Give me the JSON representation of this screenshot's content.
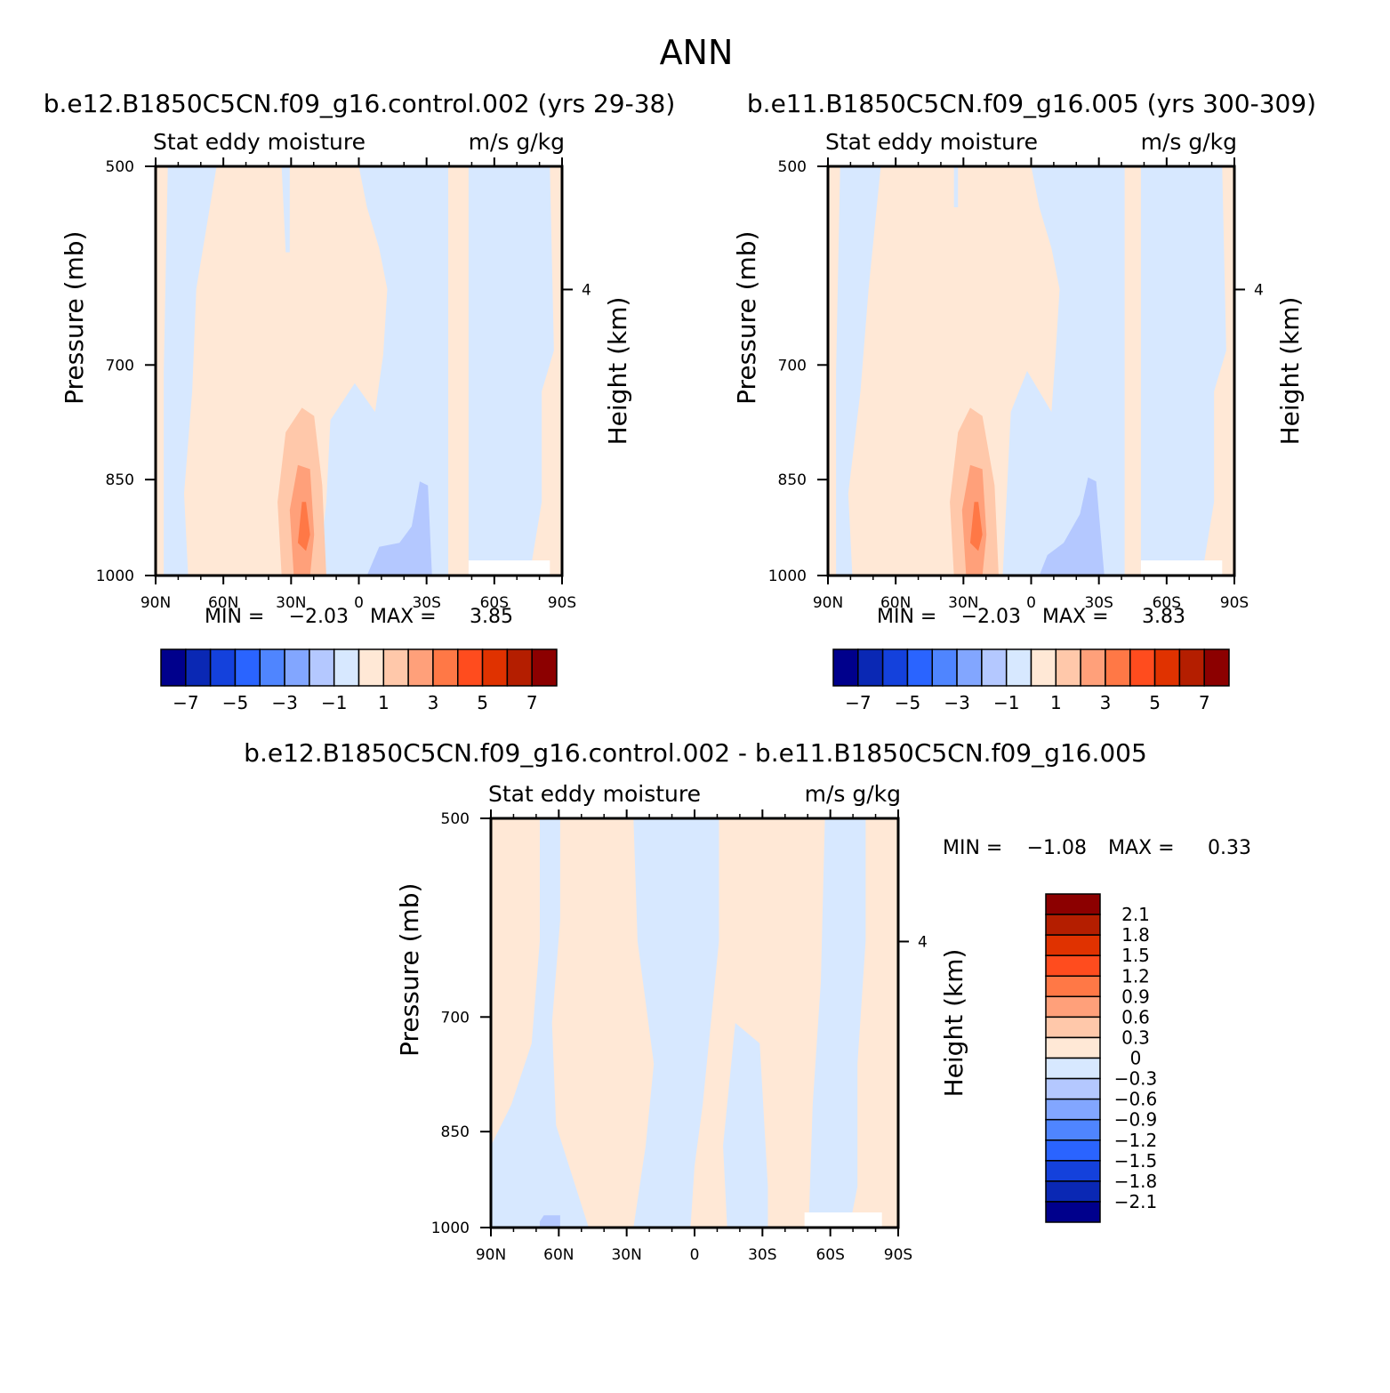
{
  "page": {
    "title": "ANN"
  },
  "chart_data": [
    {
      "type": "heatmap",
      "title": "b.e12.B1850C5CN.f09_g16.control.002 (yrs 29-38)",
      "subtitle_left": "Stat eddy moisture",
      "subtitle_right": "m/s g/kg",
      "ylabel": "Pressure (mb)",
      "ylabel_right": "Height (km)",
      "x_ticks": [
        "90N",
        "60N",
        "30N",
        "0",
        "30S",
        "60S",
        "90S"
      ],
      "y_ticks": [
        "500",
        "700",
        "850",
        "1000"
      ],
      "y_right_ticks": [
        "4"
      ],
      "stats": {
        "min_label": "MIN =",
        "min": "-2.03",
        "max_label": "MAX =",
        "max": "3.85"
      },
      "colorbar": {
        "orientation": "horizontal",
        "labels": [
          "-7",
          "-5",
          "-3",
          "-1",
          "1",
          "3",
          "5",
          "7"
        ],
        "colors": [
          "#00008c",
          "#0a28b4",
          "#1441dc",
          "#2a64ff",
          "#4f85ff",
          "#82a6ff",
          "#b4c8ff",
          "#d7e8ff",
          "#ffe8d6",
          "#ffc8aa",
          "#ffa07a",
          "#ff7846",
          "#ff4c1e",
          "#e03200",
          "#b41e00",
          "#8c0000"
        ]
      }
    },
    {
      "type": "heatmap",
      "title": "b.e11.B1850C5CN.f09_g16.005 (yrs 300-309)",
      "subtitle_left": "Stat eddy moisture",
      "subtitle_right": "m/s g/kg",
      "ylabel": "Pressure (mb)",
      "ylabel_right": "Height (km)",
      "x_ticks": [
        "90N",
        "60N",
        "30N",
        "0",
        "30S",
        "60S",
        "90S"
      ],
      "y_ticks": [
        "500",
        "700",
        "850",
        "1000"
      ],
      "y_right_ticks": [
        "4"
      ],
      "stats": {
        "min_label": "MIN =",
        "min": "-2.03",
        "max_label": "MAX =",
        "max": "3.83"
      },
      "colorbar": {
        "orientation": "horizontal",
        "labels": [
          "-7",
          "-5",
          "-3",
          "-1",
          "1",
          "3",
          "5",
          "7"
        ],
        "colors": [
          "#00008c",
          "#0a28b4",
          "#1441dc",
          "#2a64ff",
          "#4f85ff",
          "#82a6ff",
          "#b4c8ff",
          "#d7e8ff",
          "#ffe8d6",
          "#ffc8aa",
          "#ffa07a",
          "#ff7846",
          "#ff4c1e",
          "#e03200",
          "#b41e00",
          "#8c0000"
        ]
      }
    },
    {
      "type": "heatmap",
      "title": "b.e12.B1850C5CN.f09_g16.control.002 - b.e11.B1850C5CN.f09_g16.005",
      "subtitle_left": "Stat eddy moisture",
      "subtitle_right": "m/s g/kg",
      "ylabel": "Pressure (mb)",
      "ylabel_right": "Height (km)",
      "x_ticks": [
        "90N",
        "60N",
        "30N",
        "0",
        "30S",
        "60S",
        "90S"
      ],
      "y_ticks": [
        "500",
        "700",
        "850",
        "1000"
      ],
      "y_right_ticks": [
        "4"
      ],
      "stats": {
        "min_label": "MIN =",
        "min": "-1.08",
        "max_label": "MAX =",
        "max": "0.33"
      },
      "colorbar": {
        "orientation": "vertical",
        "labels": [
          "2.1",
          "1.8",
          "1.5",
          "1.2",
          "0.9",
          "0.6",
          "0.3",
          "0",
          "-0.3",
          "-0.6",
          "-0.9",
          "-1.2",
          "-1.5",
          "-1.8",
          "-2.1"
        ],
        "colors": [
          "#8c0000",
          "#b41e00",
          "#e03200",
          "#ff4c1e",
          "#ff7846",
          "#ffa07a",
          "#ffc8aa",
          "#ffe8d6",
          "#d7e8ff",
          "#b4c8ff",
          "#82a6ff",
          "#4f85ff",
          "#2a64ff",
          "#1441dc",
          "#0a28b4",
          "#00008c"
        ]
      }
    }
  ]
}
